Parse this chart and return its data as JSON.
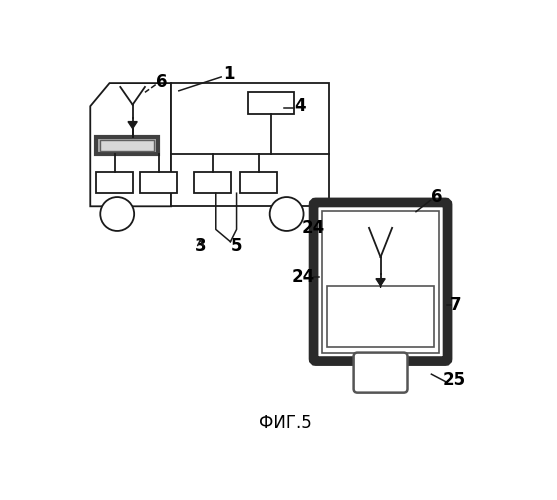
{
  "bg_color": "#ffffff",
  "line_color": "#1a1a1a",
  "title": "ФИГ.5",
  "title_fontsize": 12,
  "fig_width": 5.57,
  "fig_height": 5.0,
  "dpi": 100
}
